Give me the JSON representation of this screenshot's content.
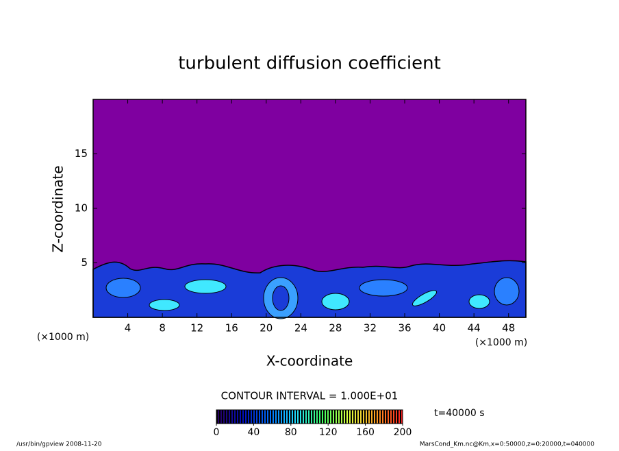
{
  "chart_data": {
    "type": "contour",
    "title": "turbulent diffusion coefficient",
    "x_label": "X-coordinate",
    "y_label": "Z-coordinate",
    "x_unit": "(×1000 m)",
    "y_unit": "(×1000 m)",
    "xlim": [
      0,
      50
    ],
    "xticks": [
      4,
      8,
      12,
      16,
      20,
      24,
      28,
      32,
      36,
      40,
      44,
      48
    ],
    "ylim": [
      0,
      20
    ],
    "yticks": [
      5,
      10,
      15
    ],
    "background_color": "#7f00a0",
    "contour_interval": "CONTOUR INTERVAL = 1.000E+01",
    "colorbar": {
      "lim": [
        0,
        200
      ],
      "ticks": [
        0,
        40,
        80,
        120,
        160,
        200
      ],
      "colors": [
        "#2a0060",
        "#0010c0",
        "#0070ff",
        "#20e0ff",
        "#40ff60",
        "#e0ff40",
        "#ffa020",
        "#ff2020"
      ]
    },
    "time_label": "t=40000 s",
    "footer_left": "/usr/bin/gpview  2008-11-20",
    "footer_right": "MarsCond_Km.nc@Km,x=0:50000,z=0:20000,t=040000"
  }
}
